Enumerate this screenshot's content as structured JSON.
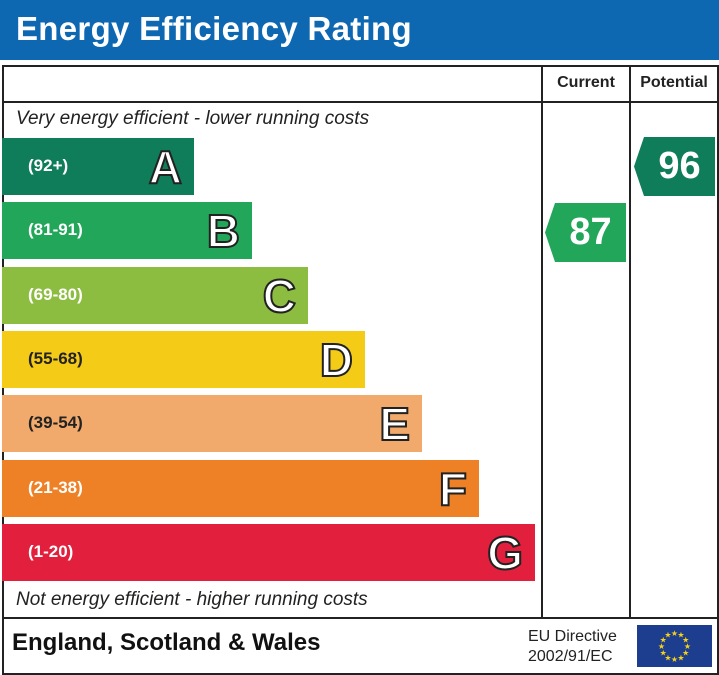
{
  "header": {
    "title": "Energy Efficiency Rating"
  },
  "columns": {
    "current": "Current",
    "potential": "Potential"
  },
  "notes": {
    "top": "Very energy efficient - lower running costs",
    "bottom": "Not energy efficient - higher running costs"
  },
  "footer": {
    "region": "England, Scotland & Wales",
    "directive_line1": "EU Directive",
    "directive_line2": "2002/91/EC",
    "flag_icon": "eu-flag-icon"
  },
  "chart_data": {
    "type": "bar",
    "title": "Energy Efficiency Rating",
    "bands": [
      {
        "letter": "A",
        "range": "(92+)",
        "min": 92,
        "max": 100,
        "color": "#0f7c5a"
      },
      {
        "letter": "B",
        "range": "(81-91)",
        "min": 81,
        "max": 91,
        "color": "#22a65a"
      },
      {
        "letter": "C",
        "range": "(69-80)",
        "min": 69,
        "max": 80,
        "color": "#8dbd40"
      },
      {
        "letter": "D",
        "range": "(55-68)",
        "min": 55,
        "max": 68,
        "color": "#f4cc17"
      },
      {
        "letter": "E",
        "range": "(39-54)",
        "min": 39,
        "max": 54,
        "color": "#f2aa6c"
      },
      {
        "letter": "F",
        "range": "(21-38)",
        "min": 21,
        "max": 38,
        "color": "#ee8026"
      },
      {
        "letter": "G",
        "range": "(1-20)",
        "min": 1,
        "max": 20,
        "color": "#e21f3d"
      }
    ],
    "current": {
      "value": 87,
      "band": "B",
      "color": "#22a65a"
    },
    "potential": {
      "value": 96,
      "band": "A",
      "color": "#0f7c5a"
    }
  }
}
